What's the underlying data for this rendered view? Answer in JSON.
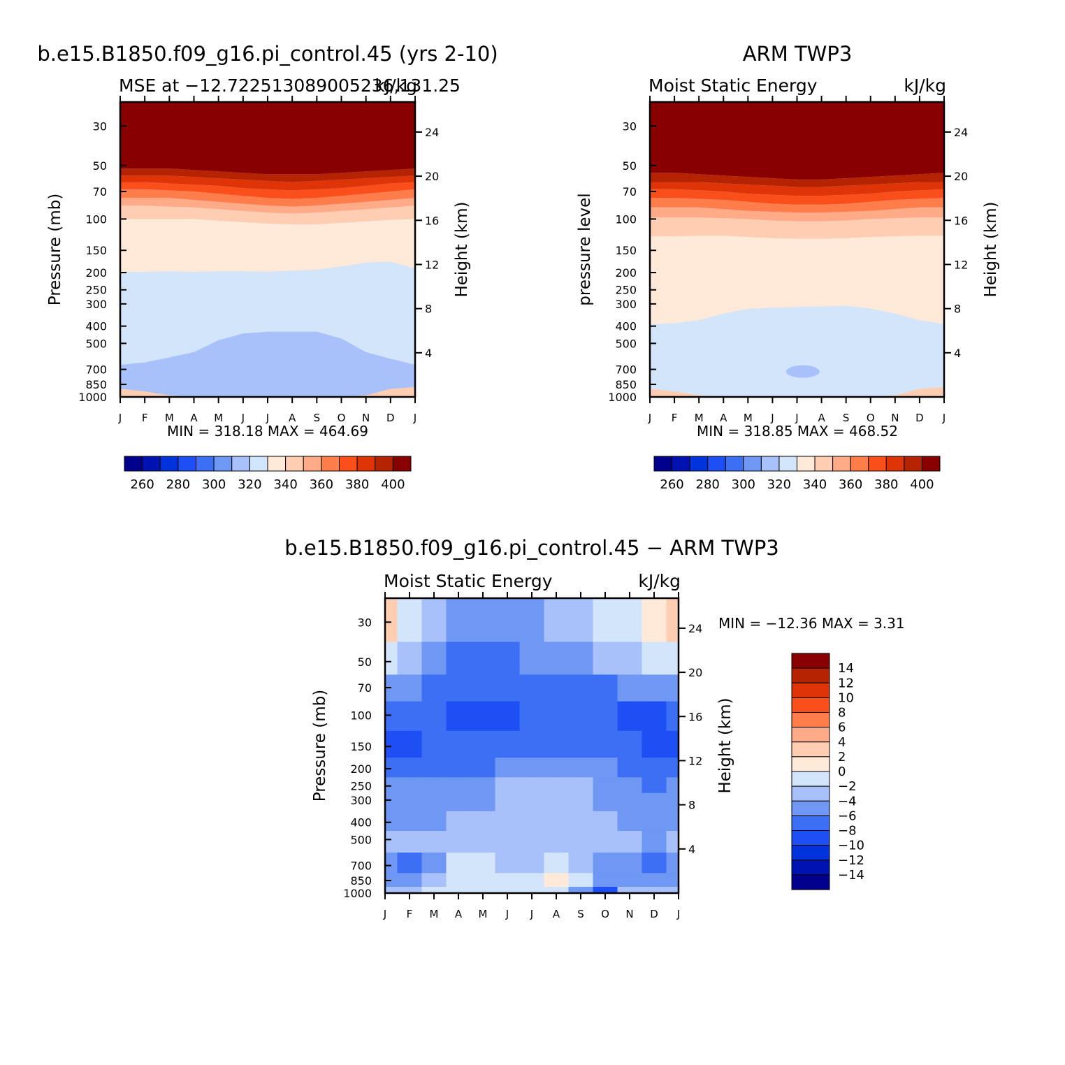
{
  "colors": {
    "abs_palette": [
      "#00008c",
      "#0012b0",
      "#0033dc",
      "#1d4ff4",
      "#3d6ff4",
      "#6f97f4",
      "#a9c1fb",
      "#d3e5fb",
      "#ffe9d8",
      "#ffcdb2",
      "#ffab88",
      "#ff7c4b",
      "#fb4f1b",
      "#de3407",
      "#b62303",
      "#880000"
    ],
    "diff_palette": [
      "#00008c",
      "#0012b0",
      "#0033dc",
      "#1d4ff4",
      "#3d6ff4",
      "#6f97f4",
      "#a9c1fb",
      "#d3e5fb",
      "#ffe9d8",
      "#ffcdb2",
      "#ffab88",
      "#ff7c4b",
      "#fb4f1b",
      "#de3407",
      "#b62303",
      "#880000"
    ]
  },
  "chart_data": [
    {
      "type": "heatmap",
      "panel": "model",
      "title": "b.e15.B1850.f09_g16.pi_control.45 (yrs 2-10)",
      "subtitle_left": "MSE at −12.722513089005236,131.25",
      "subtitle_right": "kJ/kg",
      "ylabel": "Pressure (mb)",
      "ylabel_right": "Height (km)",
      "x_ticks": [
        "J",
        "F",
        "M",
        "A",
        "M",
        "J",
        "J",
        "A",
        "S",
        "O",
        "N",
        "D",
        "J"
      ],
      "y_ticks": [
        30,
        50,
        70,
        100,
        150,
        200,
        250,
        300,
        400,
        500,
        700,
        850,
        1000
      ],
      "y_scale": "log",
      "ylim": [
        1000,
        22
      ],
      "height_ticks": [
        4,
        8,
        12,
        16,
        20,
        24
      ],
      "stats": "MIN = 318.18 MAX = 464.69",
      "colorbar_labels": [
        "260",
        "280",
        "300",
        "320",
        "340",
        "360",
        "380",
        "400"
      ],
      "contour_levels": [
        320,
        330,
        340,
        350,
        360,
        370,
        380,
        390,
        400
      ],
      "contour_boundaries": {
        "320": [
          660,
          640,
          600,
          560,
          480,
          440,
          430,
          430,
          430,
          470,
          560,
          610,
          660
        ],
        "330": [
          198,
          198,
          197,
          198,
          197,
          197,
          198,
          195,
          193,
          185,
          176,
          174,
          190
        ],
        "340": [
          100,
          100,
          100,
          100,
          102,
          104,
          106,
          107,
          107,
          105,
          103,
          101,
          100
        ],
        "350": [
          84,
          84,
          85,
          86,
          88,
          90,
          92,
          93,
          92,
          90,
          88,
          86,
          84
        ],
        "360": [
          76,
          76,
          76,
          78,
          80,
          82,
          84,
          85,
          84,
          82,
          80,
          78,
          76
        ],
        "370": [
          68,
          68,
          69,
          70,
          72,
          74,
          76,
          77,
          76,
          74,
          72,
          70,
          68
        ],
        "380": [
          62,
          62,
          63,
          64,
          65,
          67,
          68,
          69,
          68,
          67,
          65,
          63,
          62
        ],
        "390": [
          57,
          57,
          57,
          58,
          59,
          60,
          61,
          62,
          61,
          60,
          59,
          58,
          57
        ],
        "400": [
          52,
          52,
          52,
          53,
          54,
          55,
          56,
          56,
          56,
          55,
          54,
          53,
          52
        ]
      }
    },
    {
      "type": "heatmap",
      "panel": "obs",
      "title": "ARM TWP3",
      "subtitle_left": "Moist Static Energy",
      "subtitle_right": "kJ/kg",
      "ylabel": "pressure level",
      "ylabel_right": "Height (km)",
      "x_ticks": [
        "J",
        "F",
        "M",
        "A",
        "M",
        "J",
        "J",
        "A",
        "S",
        "O",
        "N",
        "D",
        "J"
      ],
      "y_ticks": [
        30,
        50,
        70,
        100,
        150,
        200,
        250,
        300,
        400,
        500,
        700,
        850,
        1000
      ],
      "y_scale": "log",
      "ylim": [
        1000,
        22
      ],
      "height_ticks": [
        4,
        8,
        12,
        16,
        20,
        24
      ],
      "stats": "MIN = 318.85 MAX = 468.52",
      "colorbar_labels": [
        "260",
        "280",
        "300",
        "320",
        "340",
        "360",
        "380",
        "400"
      ],
      "contour_levels": [
        330,
        340,
        350,
        360,
        370,
        380,
        390,
        400
      ],
      "contour_boundaries": {
        "330": [
          390,
          385,
          370,
          340,
          320,
          315,
          312,
          310,
          308,
          318,
          340,
          370,
          390
        ],
        "340": [
          125,
          125,
          124,
          124,
          126,
          128,
          129,
          129,
          128,
          126,
          125,
          124,
          124
        ],
        "350": [
          98,
          98,
          98,
          99,
          100,
          102,
          103,
          103,
          102,
          100,
          99,
          98,
          98
        ],
        "360": [
          86,
          86,
          86,
          88,
          90,
          91,
          92,
          92,
          91,
          90,
          88,
          86,
          86
        ],
        "370": [
          76,
          76,
          77,
          78,
          80,
          82,
          83,
          83,
          82,
          80,
          78,
          77,
          76
        ],
        "380": [
          68,
          68,
          69,
          70,
          72,
          73,
          74,
          74,
          73,
          72,
          70,
          69,
          68
        ],
        "390": [
          62,
          62,
          62,
          63,
          64,
          65,
          66,
          66,
          65,
          64,
          63,
          62,
          62
        ],
        "400": [
          55,
          55,
          56,
          57,
          58,
          59,
          60,
          60,
          59,
          58,
          57,
          56,
          55
        ]
      }
    },
    {
      "type": "heatmap",
      "panel": "diff",
      "title": "b.e15.B1850.f09_g16.pi_control.45 − ARM TWP3",
      "subtitle_left": "Moist Static Energy",
      "subtitle_right": "kJ/kg",
      "ylabel": "Pressure (mb)",
      "ylabel_right": "Height (km)",
      "x_ticks": [
        "J",
        "F",
        "M",
        "A",
        "M",
        "J",
        "J",
        "A",
        "S",
        "O",
        "N",
        "D",
        "J"
      ],
      "y_ticks": [
        30,
        50,
        70,
        100,
        150,
        200,
        250,
        300,
        400,
        500,
        700,
        850,
        1000
      ],
      "y_scale": "log",
      "ylim": [
        1000,
        22
      ],
      "height_ticks": [
        4,
        8,
        12,
        16,
        20,
        24
      ],
      "stats": "MIN = −12.36 MAX =    3.31",
      "colorbar_labels": [
        "14",
        "12",
        "10",
        "8",
        "6",
        "4",
        "2",
        "0",
        "−2",
        "−4",
        "−6",
        "−8",
        "−10",
        "−12",
        "−14"
      ],
      "grid": [
        [
          2,
          -1,
          -3,
          -6,
          -6,
          -5,
          -5,
          -4,
          -3,
          -2,
          -1,
          1,
          2
        ],
        [
          -1,
          -3,
          -5,
          -7,
          -7,
          -7,
          -6,
          -6,
          -5,
          -4,
          -3,
          -2,
          -1
        ],
        [
          -5,
          -6,
          -7,
          -8,
          -8,
          -8,
          -8,
          -8,
          -7,
          -7,
          -6,
          -5,
          -5
        ],
        [
          -8,
          -8,
          -8,
          -9,
          -9,
          -9,
          -8,
          -8,
          -8,
          -8,
          -9,
          -9,
          -8
        ],
        [
          -9,
          -9,
          -8,
          -8,
          -8,
          -8,
          -8,
          -8,
          -8,
          -8,
          -8,
          -9,
          -9
        ],
        [
          -7,
          -7,
          -7,
          -7,
          -7,
          -6,
          -6,
          -6,
          -6,
          -6,
          -7,
          -7,
          -7
        ],
        [
          -6,
          -6,
          -6,
          -6,
          -5,
          -4,
          -4,
          -4,
          -4,
          -5,
          -6,
          -7,
          -6
        ],
        [
          -6,
          -6,
          -6,
          -5,
          -5,
          -4,
          -4,
          -4,
          -4,
          -5,
          -5,
          -6,
          -6
        ],
        [
          -5,
          -5,
          -5,
          -4,
          -4,
          -4,
          -4,
          -4,
          -4,
          -4,
          -5,
          -5,
          -5
        ],
        [
          -4,
          -4,
          -4,
          -3,
          -3,
          -4,
          -4,
          -3,
          -4,
          -4,
          -4,
          -5,
          -4
        ],
        [
          -6,
          -7,
          -6,
          -2,
          -2,
          -3,
          -3,
          -1,
          -3,
          -6,
          -6,
          -7,
          -6
        ],
        [
          -5,
          -5,
          -4,
          -2,
          -1,
          -1,
          -1,
          1,
          -1,
          -5,
          -5,
          -5,
          -5
        ],
        [
          -3,
          -3,
          -2,
          -1,
          -1,
          -1,
          -1,
          -1,
          -6,
          -9,
          -4,
          -3,
          -3
        ]
      ]
    }
  ]
}
